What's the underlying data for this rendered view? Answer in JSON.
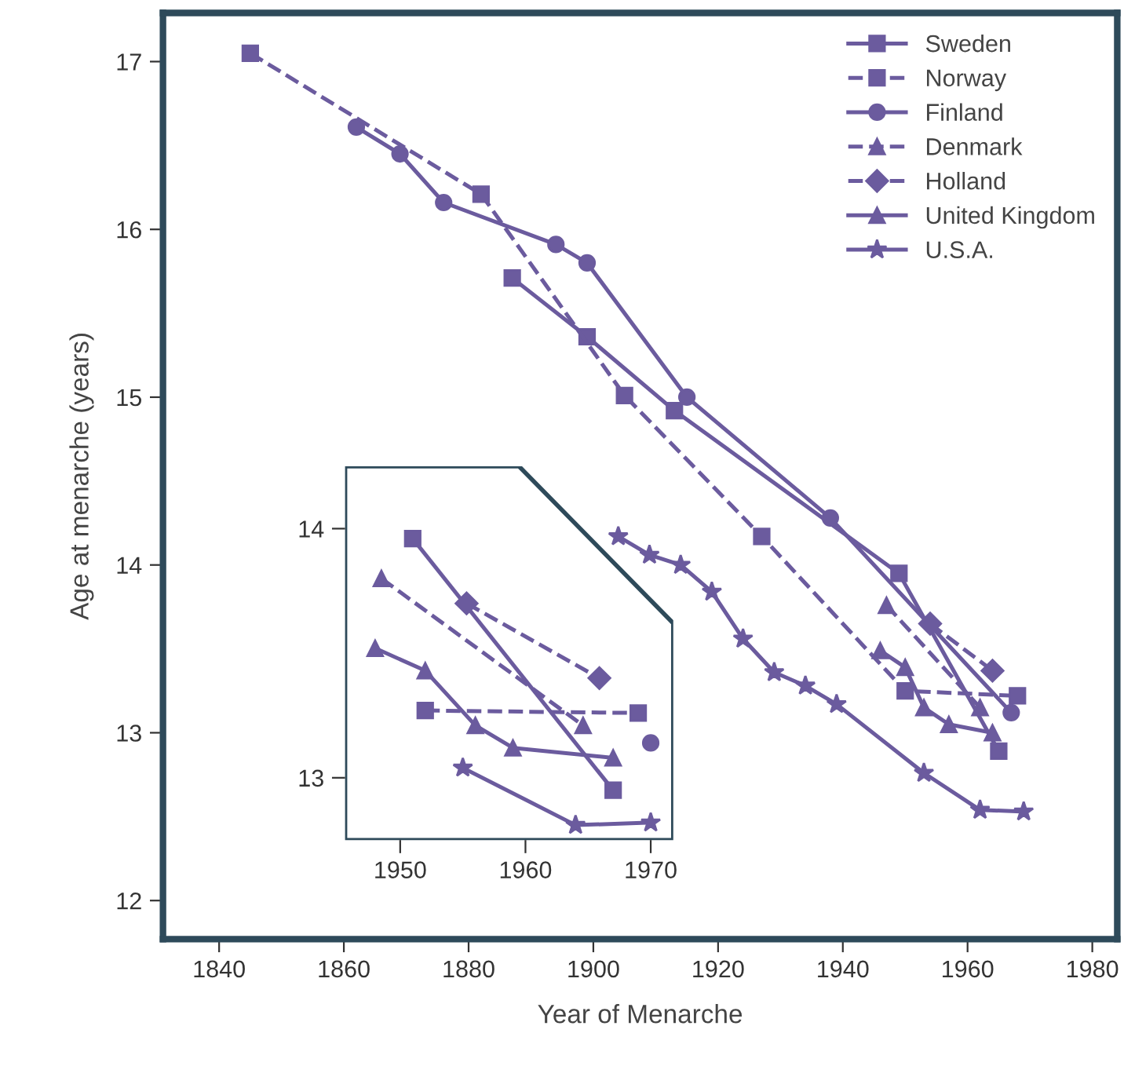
{
  "chart_data": [
    {
      "type": "line",
      "xlabel": "Year of Menarche",
      "ylabel": "Age at menarche (years)",
      "xlim": [
        1831,
        1984
      ],
      "ylim": [
        11.77,
        17.29
      ],
      "xticks": [
        1840,
        1860,
        1880,
        1900,
        1920,
        1940,
        1960,
        1980
      ],
      "yticks": [
        12,
        13,
        14,
        15,
        16,
        17
      ],
      "legend": "top right",
      "grid": false,
      "series": [
        {
          "name": "Sweden",
          "color": "#6b5b9e",
          "marker": "square",
          "line_style": "solid",
          "x": [
            1887,
            1899,
            1913,
            1949,
            1965
          ],
          "values": [
            15.71,
            15.36,
            14.92,
            13.95,
            12.89
          ]
        },
        {
          "name": "Norway",
          "color": "#6b5b9e",
          "marker": "square",
          "line_style": "dashed",
          "x": [
            1845,
            1882,
            1905,
            1927,
            1950,
            1968
          ],
          "values": [
            17.05,
            16.21,
            15.01,
            14.17,
            13.25,
            13.22
          ]
        },
        {
          "name": "Finland",
          "color": "#6b5b9e",
          "marker": "circle",
          "line_style": "solid",
          "x": [
            1862,
            1869,
            1876,
            1894,
            1899,
            1915,
            1938,
            1967
          ],
          "values": [
            16.61,
            16.45,
            16.16,
            15.91,
            15.8,
            15.0,
            14.28,
            13.12
          ]
        },
        {
          "name": "Denmark",
          "color": "#6b5b9e",
          "marker": "triangle",
          "line_style": "dashed",
          "x": [
            1947,
            1962
          ],
          "values": [
            13.76,
            13.15
          ]
        },
        {
          "name": "Holland",
          "color": "#6b5b9e",
          "marker": "diamond",
          "line_style": "dashed",
          "x": [
            1954,
            1964
          ],
          "values": [
            13.65,
            13.37
          ]
        },
        {
          "name": "United Kingdom",
          "color": "#6b5b9e",
          "marker": "triangle",
          "line_style": "solid",
          "x": [
            1946,
            1950,
            1953,
            1957,
            1964
          ],
          "values": [
            13.49,
            13.39,
            13.15,
            13.05,
            13.0
          ]
        },
        {
          "name": "U.S.A.",
          "color": "#6b5b9e",
          "marker": "star",
          "line_style": "solid",
          "x": [
            1904,
            1909,
            1914,
            1919,
            1924,
            1929,
            1934,
            1939,
            1953,
            1962,
            1969
          ],
          "values": [
            14.17,
            14.06,
            14.0,
            13.84,
            13.56,
            13.36,
            13.28,
            13.17,
            12.76,
            12.54,
            12.53
          ]
        }
      ]
    },
    {
      "type": "line",
      "xlim": [
        1945.6,
        1971.8
      ],
      "ylim": [
        12.75,
        14.25
      ],
      "xticks": [
        1950,
        1960,
        1970
      ],
      "yticks": [
        13,
        14
      ],
      "grid": false,
      "series": [
        {
          "color": "#6b5b9e",
          "marker": "square",
          "line_style": "solid",
          "x": [
            1951,
            1967
          ],
          "values": [
            13.96,
            12.95
          ]
        },
        {
          "color": "#6b5b9e",
          "marker": "square",
          "line_style": "dashed",
          "x": [
            1952,
            1969
          ],
          "values": [
            13.27,
            13.26
          ]
        },
        {
          "color": "#6b5b9e",
          "marker": "circle",
          "line_style": "solid",
          "x": [
            1970
          ],
          "values": [
            13.14
          ]
        },
        {
          "color": "#6b5b9e",
          "marker": "triangle",
          "line_style": "dashed",
          "x": [
            1948.5,
            1964.6
          ],
          "values": [
            13.8,
            13.21
          ]
        },
        {
          "color": "#6b5b9e",
          "marker": "diamond",
          "line_style": "dashed",
          "x": [
            1955.3,
            1965.9
          ],
          "values": [
            13.7,
            13.4
          ]
        },
        {
          "color": "#6b5b9e",
          "marker": "triangle",
          "line_style": "solid",
          "x": [
            1948,
            1952,
            1956,
            1959,
            1967
          ],
          "values": [
            13.52,
            13.43,
            13.21,
            13.12,
            13.08
          ]
        },
        {
          "color": "#6b5b9e",
          "marker": "star",
          "line_style": "solid",
          "x": [
            1955,
            1964,
            1970
          ],
          "values": [
            13.04,
            12.81,
            12.82
          ]
        }
      ]
    }
  ]
}
